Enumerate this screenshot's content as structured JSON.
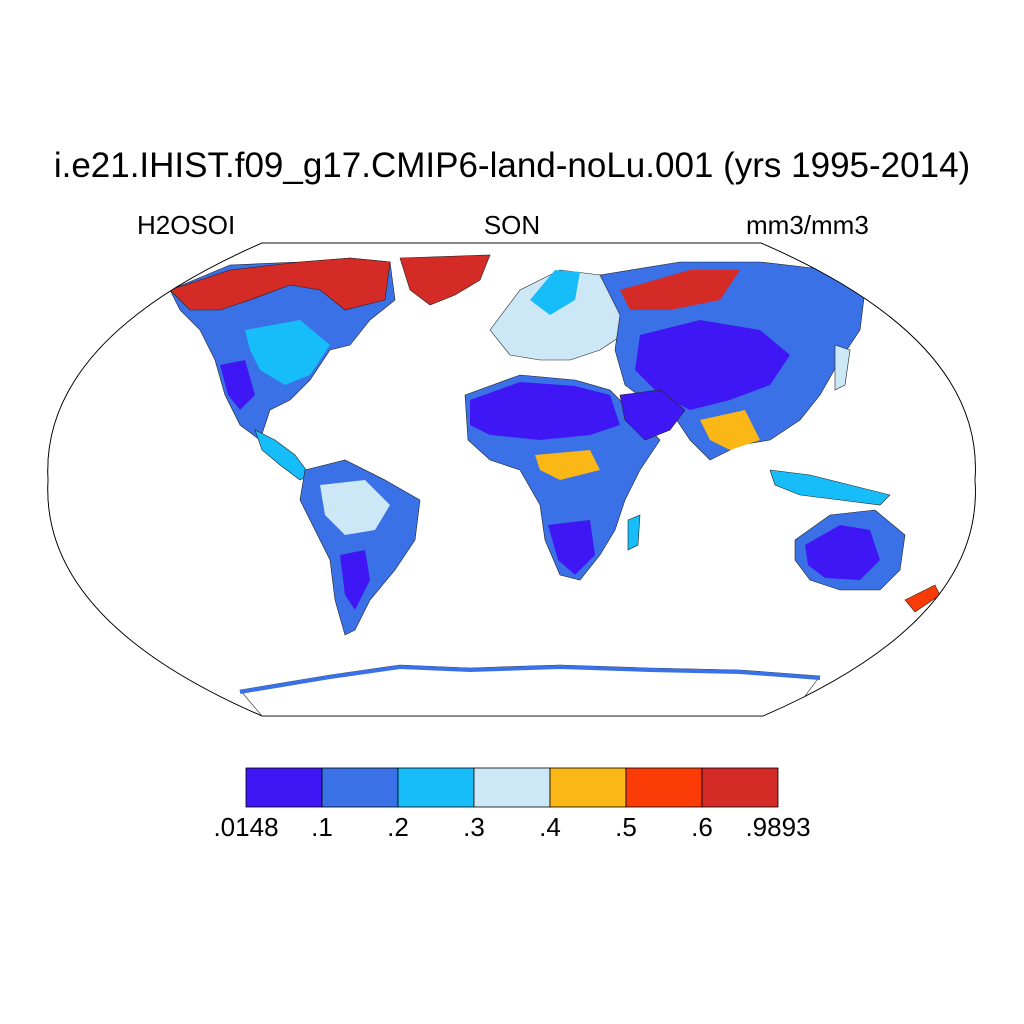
{
  "title": "i.e21.IHIST.f09_g17.CMIP6-land-noLu.001 (yrs 1995-2014)",
  "left_label": "H2OSOI",
  "center_label": "SON",
  "right_label": "mm3/mm3",
  "map": {
    "projection": "Robinson",
    "variable": "H2OSOI",
    "season": "SON",
    "units": "mm3/mm3",
    "ocean_fill": "#ffffff"
  },
  "colorbar": {
    "orientation": "horizontal",
    "colors": [
      "#3f17f5",
      "#3a71e6",
      "#17bdf9",
      "#cce8f7",
      "#fbb716",
      "#fa3b05",
      "#d42b26"
    ],
    "tick_labels": [
      ".0148",
      ".1",
      ".2",
      ".3",
      ".4",
      ".5",
      ".6",
      ".9893"
    ],
    "tick_values": [
      0.0148,
      0.1,
      0.2,
      0.3,
      0.4,
      0.5,
      0.6,
      0.9893
    ]
  }
}
